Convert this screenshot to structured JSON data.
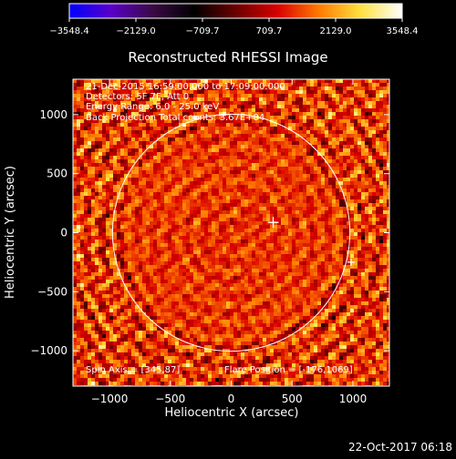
{
  "chart_data": {
    "type": "heatmap",
    "title": "Reconstructed RHESSI Image",
    "xlabel": "Heliocentric X (arcsec)",
    "ylabel": "Heliocentric Y (arcsec)",
    "xlim": [
      -1300,
      1300
    ],
    "ylim": [
      -1300,
      1300
    ],
    "xticks": [
      -1000,
      -500,
      0,
      500,
      1000
    ],
    "yticks": [
      -1000,
      -500,
      0,
      500,
      1000
    ],
    "xtick_labels": [
      "−1000",
      "−500",
      "0",
      "500",
      "1000"
    ],
    "ytick_labels": [
      "−1000",
      "−500",
      "0",
      "500",
      "1000"
    ],
    "colorbar": {
      "min": -3548.4,
      "max": 3548.4,
      "tick_values": [
        -3548.4,
        -2129.0,
        -709.7,
        709.7,
        2129.0,
        3548.4
      ],
      "tick_labels": [
        "−3548.4",
        "−2129.0",
        "−709.7",
        "709.7",
        "2129.0",
        "3548.4"
      ],
      "stops": [
        "#0000ff",
        "#5a00c8",
        "#3a0a46",
        "#000000",
        "#6a0000",
        "#d80000",
        "#ff7a00",
        "#ffe040",
        "#ffffff"
      ]
    },
    "solar_disk": {
      "center": [
        0,
        0
      ],
      "radius": 975,
      "color": "#ffffff"
    },
    "flare_marker": {
      "x": 345,
      "y": 87,
      "symbol": "+"
    },
    "limb_marker": {
      "x": 985,
      "y": -250,
      "symbol": "+"
    },
    "grid": false
  },
  "annotations": {
    "line1": "21-Dec-2015 16:59:00.000 to 17:09:00.000",
    "line2": "Detectors: 5F 7F, Att 0",
    "line3": "Energy Range: 6.0 - 25.0 keV",
    "line4": "Back Projection    Total counts: 3.67E+04",
    "spin_axis": "Spin Axis = [345,87]",
    "flare_position": "Flare Position = [-176,1069]"
  },
  "footer": {
    "timestamp": "22-Oct-2017 06:18"
  }
}
